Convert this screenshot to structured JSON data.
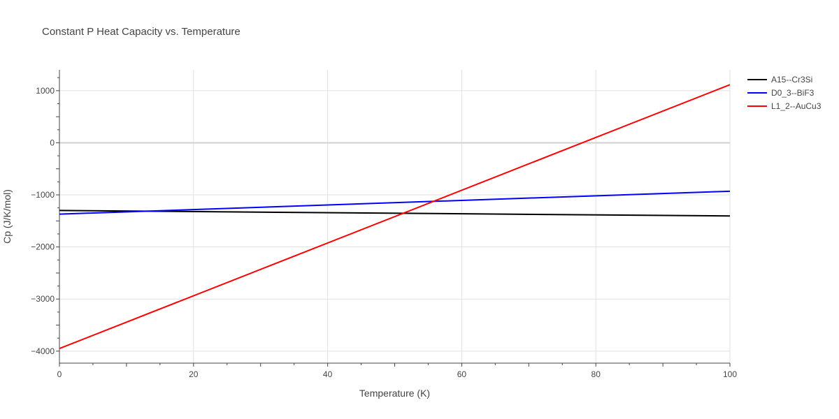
{
  "chart_data": {
    "type": "line",
    "title": "Constant P Heat Capacity vs. Temperature",
    "xlabel": "Temperature (K)",
    "ylabel": "Cp (J/K/mol)",
    "xlim": [
      0,
      100
    ],
    "ylim": [
      -4230,
      1400
    ],
    "xticks": [
      0,
      20,
      40,
      60,
      80,
      100
    ],
    "xtick_labels": [
      "0",
      "20",
      "40",
      "60",
      "80",
      "100"
    ],
    "yticks": [
      -4000,
      -3000,
      -2000,
      -1000,
      0,
      1000
    ],
    "ytick_labels": [
      "−4000",
      "−3000",
      "−2000",
      "−1000",
      "0",
      "1000"
    ],
    "grid": true,
    "legend_position": "top-right-outside",
    "series": [
      {
        "name": "A15--Cr3Si",
        "color": "#000000",
        "x": [
          0,
          100
        ],
        "y": [
          -1300,
          -1405
        ]
      },
      {
        "name": "D0_3--BiF3",
        "color": "#0000ff",
        "x": [
          0,
          100
        ],
        "y": [
          -1370,
          -930
        ]
      },
      {
        "name": "L1_2--AuCu3",
        "color": "#ff0000",
        "x": [
          0,
          100
        ],
        "y": [
          -3950,
          1115
        ]
      }
    ]
  }
}
